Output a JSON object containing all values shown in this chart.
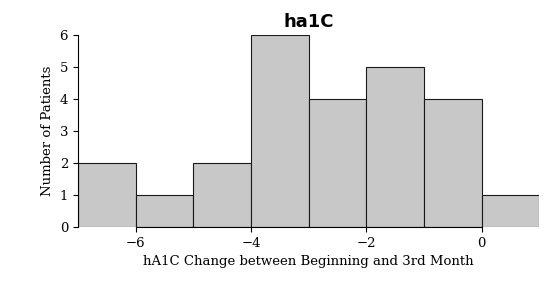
{
  "title": "ha1C",
  "xlabel": "hA1C Change between Beginning and 3rd Month",
  "ylabel": "Number of Patients",
  "bin_edges": [
    -7,
    -6,
    -5,
    -4,
    -3,
    -2,
    -1,
    0,
    1
  ],
  "bar_heights": [
    2,
    1,
    2,
    6,
    4,
    5,
    4,
    1
  ],
  "bar_color": "#c8c8c8",
  "bar_edgecolor": "#1a1a1a",
  "xlim": [
    -7.0,
    1.0
  ],
  "ylim": [
    0,
    6
  ],
  "xticks": [
    -6,
    -4,
    -2,
    0
  ],
  "yticks": [
    0,
    1,
    2,
    3,
    4,
    5,
    6
  ],
  "title_fontsize": 13,
  "label_fontsize": 9.5,
  "tick_fontsize": 9.5,
  "background_color": "#ffffff",
  "linewidth": 0.8
}
